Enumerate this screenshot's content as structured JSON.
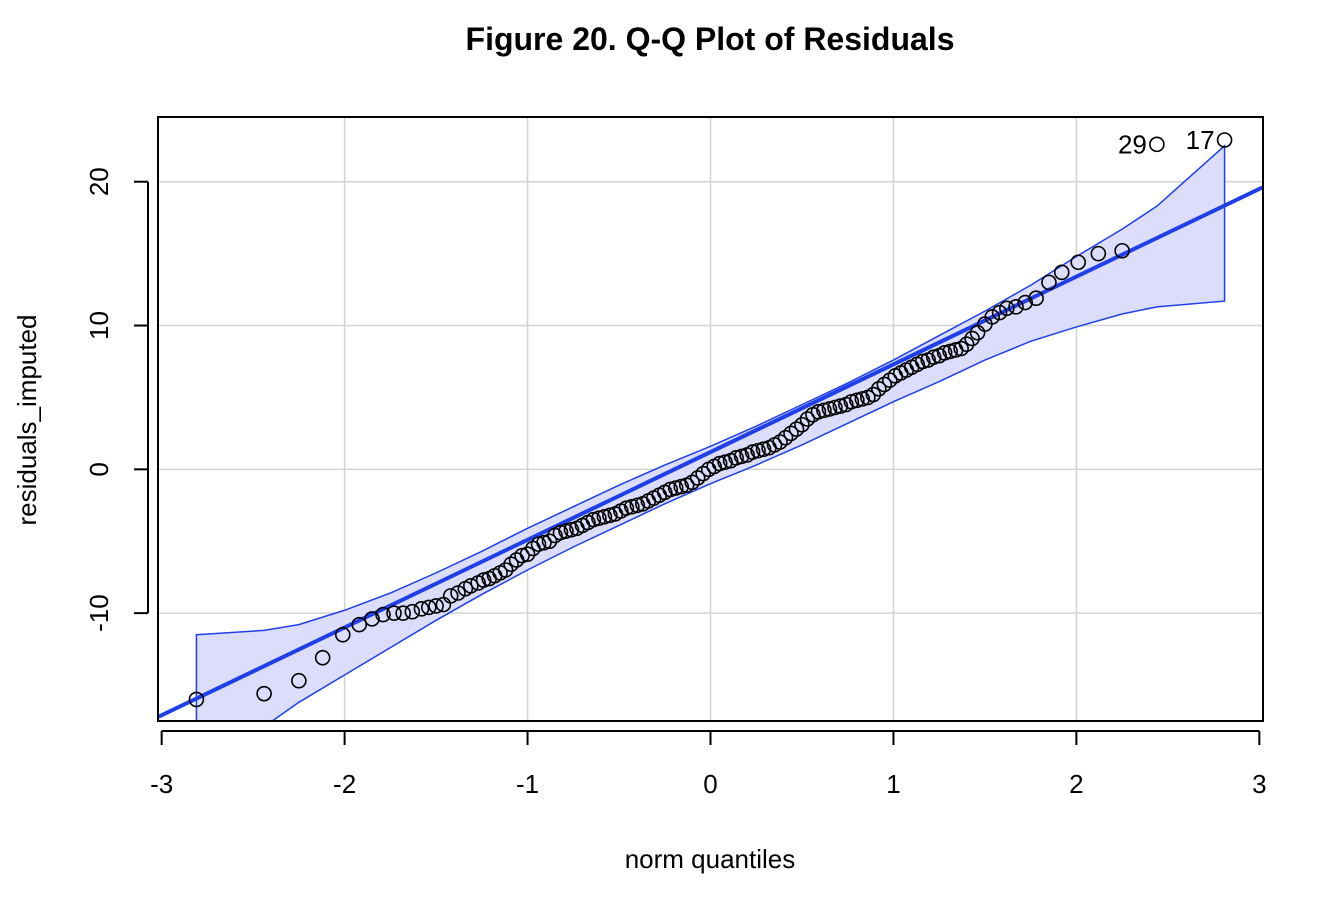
{
  "chart_data": {
    "type": "scatter",
    "title": "Figure 20. Q-Q Plot of Residuals",
    "xlabel": "norm quantiles",
    "ylabel": "residuals_imputed",
    "xlim": [
      -3.02,
      3.02
    ],
    "ylim": [
      -17.5,
      24.5
    ],
    "x_ticks": [
      -3,
      -2,
      -1,
      0,
      1,
      2,
      3
    ],
    "x_tick_labels": [
      "-3",
      "-2",
      "-1",
      "0",
      "1",
      "2",
      "3"
    ],
    "y_ticks": [
      -10,
      0,
      10,
      20
    ],
    "y_tick_labels": [
      "-10",
      "0",
      "10",
      "20"
    ],
    "grid": true,
    "colors": {
      "line": "#1f3fe8",
      "band_fill": "#dcdcfb",
      "band_edge": "#1f3fe8",
      "grid": "#d3d3d3",
      "points": "#000000"
    },
    "reference_line": {
      "slope": 6.1,
      "intercept": 1.2
    },
    "confidence_band": {
      "x": [
        -2.81,
        -2.44,
        -2.25,
        -2.0,
        -1.75,
        -1.5,
        -1.25,
        -1.0,
        -0.75,
        -0.5,
        -0.25,
        0.0,
        0.25,
        0.5,
        0.75,
        1.0,
        1.25,
        1.5,
        1.75,
        2.0,
        2.25,
        2.44,
        2.81
      ],
      "upper": [
        -11.5,
        -11.2,
        -10.8,
        -9.8,
        -8.6,
        -7.2,
        -5.7,
        -4.1,
        -2.6,
        -1.1,
        0.3,
        1.6,
        3.0,
        4.5,
        6.0,
        7.6,
        9.3,
        11.0,
        12.8,
        14.8,
        16.7,
        18.3,
        22.5
      ],
      "lower": [
        -18.5,
        -17.9,
        -16.2,
        -14.3,
        -12.4,
        -10.5,
        -8.7,
        -7.0,
        -5.4,
        -3.9,
        -2.4,
        -1.0,
        0.3,
        1.7,
        3.2,
        4.7,
        6.1,
        7.6,
        8.9,
        9.9,
        10.8,
        11.3,
        11.7
      ]
    },
    "labeled_points": [
      {
        "label": "29",
        "x": 2.44,
        "y": 22.6
      },
      {
        "label": "17",
        "x": 2.81,
        "y": 22.9
      }
    ],
    "points": {
      "x": [
        -2.81,
        -2.44,
        -2.25,
        -2.12,
        -2.01,
        -1.92,
        -1.85,
        -1.79,
        -1.73,
        -1.68,
        -1.63,
        -1.58,
        -1.54,
        -1.5,
        -1.46,
        -1.42,
        -1.38,
        -1.34,
        -1.31,
        -1.27,
        -1.24,
        -1.21,
        -1.18,
        -1.15,
        -1.12,
        -1.09,
        -1.06,
        -1.03,
        -1.0,
        -0.97,
        -0.94,
        -0.91,
        -0.88,
        -0.85,
        -0.82,
        -0.79,
        -0.76,
        -0.73,
        -0.7,
        -0.67,
        -0.64,
        -0.61,
        -0.58,
        -0.55,
        -0.52,
        -0.49,
        -0.46,
        -0.43,
        -0.4,
        -0.37,
        -0.34,
        -0.31,
        -0.28,
        -0.25,
        -0.22,
        -0.19,
        -0.16,
        -0.13,
        -0.1,
        -0.07,
        -0.04,
        -0.01,
        0.02,
        0.05,
        0.08,
        0.11,
        0.14,
        0.17,
        0.2,
        0.23,
        0.26,
        0.29,
        0.32,
        0.35,
        0.38,
        0.41,
        0.44,
        0.47,
        0.5,
        0.53,
        0.56,
        0.59,
        0.62,
        0.65,
        0.68,
        0.71,
        0.74,
        0.77,
        0.8,
        0.83,
        0.86,
        0.89,
        0.92,
        0.95,
        0.98,
        1.01,
        1.04,
        1.07,
        1.1,
        1.13,
        1.16,
        1.19,
        1.22,
        1.25,
        1.28,
        1.31,
        1.34,
        1.37,
        1.4,
        1.43,
        1.46,
        1.5,
        1.54,
        1.58,
        1.62,
        1.67,
        1.72,
        1.78,
        1.85,
        1.92,
        2.01,
        2.12,
        2.25,
        2.44,
        2.81
      ],
      "y": [
        -16.0,
        -15.6,
        -14.7,
        -13.1,
        -11.5,
        -10.8,
        -10.4,
        -10.1,
        -10.0,
        -10.0,
        -9.9,
        -9.7,
        -9.6,
        -9.5,
        -9.4,
        -8.8,
        -8.6,
        -8.3,
        -8.1,
        -7.9,
        -7.7,
        -7.6,
        -7.4,
        -7.2,
        -7.0,
        -6.6,
        -6.3,
        -6.0,
        -5.9,
        -5.5,
        -5.2,
        -5.1,
        -5.0,
        -4.6,
        -4.4,
        -4.3,
        -4.2,
        -4.1,
        -3.9,
        -3.7,
        -3.5,
        -3.4,
        -3.3,
        -3.2,
        -3.1,
        -2.9,
        -2.7,
        -2.6,
        -2.5,
        -2.4,
        -2.2,
        -2.0,
        -1.8,
        -1.6,
        -1.4,
        -1.3,
        -1.2,
        -1.1,
        -0.9,
        -0.6,
        -0.3,
        0.0,
        0.2,
        0.4,
        0.5,
        0.6,
        0.8,
        0.9,
        1.0,
        1.2,
        1.3,
        1.4,
        1.5,
        1.7,
        1.9,
        2.2,
        2.5,
        2.8,
        3.1,
        3.5,
        3.8,
        4.0,
        4.1,
        4.2,
        4.3,
        4.4,
        4.5,
        4.7,
        4.8,
        4.9,
        5.0,
        5.2,
        5.6,
        5.9,
        6.2,
        6.5,
        6.7,
        6.9,
        7.1,
        7.3,
        7.5,
        7.6,
        7.8,
        7.9,
        8.1,
        8.2,
        8.3,
        8.4,
        8.7,
        9.1,
        9.5,
        10.1,
        10.6,
        10.9,
        11.2,
        11.3,
        11.6,
        11.9,
        13.0,
        13.7,
        14.4,
        15.0,
        15.2,
        22.6,
        22.9
      ]
    }
  }
}
